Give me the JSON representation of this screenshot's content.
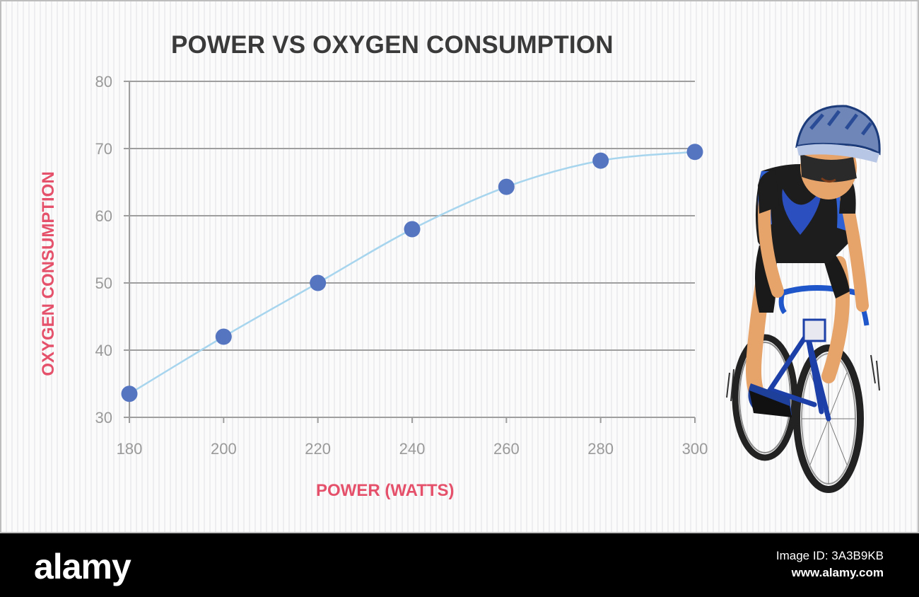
{
  "chart_data": {
    "type": "line",
    "title": "POWER VS OXYGEN CONSUMPTION",
    "xlabel": "POWER (WATTS)",
    "ylabel": "OXYGEN CONSUMPTION",
    "x": [
      180,
      200,
      220,
      240,
      260,
      280,
      300
    ],
    "series": [
      {
        "values": [
          33.5,
          42,
          50,
          58,
          64.3,
          68.2,
          69.5
        ]
      }
    ],
    "xticks": [
      "180",
      "200",
      "220",
      "240",
      "260",
      "280",
      "300"
    ],
    "yticks": [
      "30",
      "40",
      "50",
      "60",
      "70",
      "80"
    ],
    "xlim": [
      180,
      300
    ],
    "ylim": [
      30,
      80
    ],
    "grid": "horizontal",
    "colors": {
      "line": "#a7d5ee",
      "point": "#5575c0",
      "grid": "#9e9e9e",
      "axis_label": "#e5516a",
      "title": "#3a3a3a",
      "tick": "#9a9a9a"
    }
  },
  "illustration": {
    "icon": "cyclist-icon"
  },
  "watermark": {
    "brand": "alamy",
    "image_id": "Image ID: 3A3B9KB",
    "site": "www.alamy.com"
  }
}
